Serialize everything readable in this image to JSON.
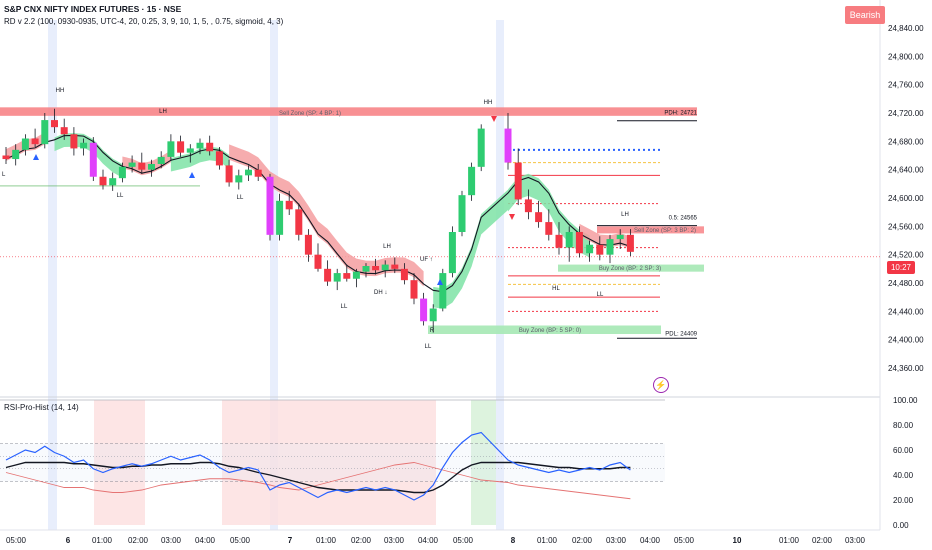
{
  "header": {
    "title": "S&P CNX NIFTY INDEX FUTURES · 15 · NSE",
    "subtitle": "RD v 2.2 (100, 0930-0935, UTC-4, 20, 0.25, 3, 9, 10, 1, 5, , 0.75, sigmoid, 4, 3)"
  },
  "badge": {
    "label": "Bearish",
    "color": "#f77c80"
  },
  "current_price_tag": {
    "label": "10:27",
    "color": "#f23645"
  },
  "price_axis": {
    "labels": [
      "24,840.00",
      "24,800.00",
      "24,760.00",
      "24,720.00",
      "24,680.00",
      "24,640.00",
      "24,600.00",
      "24,560.00",
      "24,520.00",
      "24,480.00",
      "24,440.00",
      "24,400.00",
      "24,360.00"
    ],
    "values": [
      24840,
      24800,
      24760,
      24720,
      24680,
      24640,
      24600,
      24560,
      24520,
      24480,
      24440,
      24400,
      24360
    ]
  },
  "rsi_axis": {
    "labels": [
      "100.00",
      "80.00",
      "60.00",
      "40.00",
      "20.00",
      "0.00"
    ],
    "values": [
      100,
      80,
      60,
      40,
      20,
      0
    ]
  },
  "time_axis": {
    "labels": [
      "05:00",
      "6",
      "01:00",
      "02:00",
      "03:00",
      "04:00",
      "05:00",
      "7",
      "01:00",
      "02:00",
      "03:00",
      "04:00",
      "05:00",
      "8",
      "01:00",
      "02:00",
      "03:00",
      "04:00",
      "05:00",
      "10",
      "01:00",
      "02:00",
      "03:00"
    ]
  },
  "indicator": {
    "title": "RSI-Pro-Hist (14, 14)"
  },
  "zones": {
    "sell_zone_1": "Sell Zone (SP: 4  BP: 1)",
    "sell_zone_2": "Sell Zone (SP: 3  BP: 2)",
    "buy_zone_1": "Buy Zone (BP: 2  SP: 3)",
    "buy_zone_2": "Buy Zone (BP: 5  SP: 0)"
  },
  "levels": {
    "pdh": "PDH: 24721",
    "pdl": "PDL: 24409",
    "fib": "0.5: 24565"
  },
  "annotations": {
    "hh": "HH",
    "lh": "LH",
    "ll": "LL",
    "l": "L",
    "hl": "HL",
    "uf": "UF ↑",
    "dh": "DH ↓",
    "r": "R"
  },
  "colors": {
    "up": "#2ecc71",
    "down": "#f23645",
    "magenta": "#e040fb",
    "sell_zone": "#f77c80",
    "buy_zone": "#a5e8b4",
    "band_bear": "#f49ea0",
    "band_bull": "#7ee3a6",
    "session": "#e8eefc",
    "rsi_line": "#2962ff",
    "rsi_ma": "#131722",
    "rsi_signal": "#e57373",
    "bear_zone": "#fddede",
    "bull_zone": "#d4f0d6"
  },
  "chart_data": {
    "type": "candlestick",
    "title": "S&P CNX NIFTY INDEX FUTURES · 15 · NSE",
    "ylim": [
      24340,
      24860
    ],
    "ohlc": [
      [
        24660,
        24672,
        24648,
        24655
      ],
      [
        24655,
        24676,
        24646,
        24668
      ],
      [
        24668,
        24690,
        24660,
        24684
      ],
      [
        24684,
        24698,
        24672,
        24676
      ],
      [
        24676,
        24720,
        24670,
        24710
      ],
      [
        24710,
        24726,
        24692,
        24700
      ],
      [
        24700,
        24712,
        24682,
        24690
      ],
      [
        24690,
        24700,
        24660,
        24670
      ],
      [
        24670,
        24684,
        24660,
        24678
      ],
      [
        24678,
        24686,
        24624,
        24630
      ],
      [
        24630,
        24640,
        24612,
        24618
      ],
      [
        24618,
        24636,
        24610,
        24628
      ],
      [
        24628,
        24650,
        24622,
        24644
      ],
      [
        24644,
        24660,
        24636,
        24650
      ],
      [
        24650,
        24664,
        24634,
        24640
      ],
      [
        24640,
        24654,
        24630,
        24648
      ],
      [
        24648,
        24666,
        24642,
        24658
      ],
      [
        24658,
        24690,
        24652,
        24680
      ],
      [
        24680,
        24688,
        24658,
        24664
      ],
      [
        24664,
        24676,
        24650,
        24670
      ],
      [
        24670,
        24684,
        24662,
        24678
      ],
      [
        24678,
        24688,
        24660,
        24666
      ],
      [
        24666,
        24672,
        24640,
        24646
      ],
      [
        24646,
        24654,
        24616,
        24622
      ],
      [
        24622,
        24640,
        24612,
        24632
      ],
      [
        24632,
        24646,
        24624,
        24640
      ],
      [
        24640,
        24648,
        24624,
        24630
      ],
      [
        24630,
        24634,
        24540,
        24548
      ],
      [
        24548,
        24606,
        24540,
        24596
      ],
      [
        24596,
        24610,
        24576,
        24584
      ],
      [
        24584,
        24592,
        24540,
        24548
      ],
      [
        24548,
        24556,
        24510,
        24520
      ],
      [
        24520,
        24536,
        24496,
        24500
      ],
      [
        24500,
        24512,
        24476,
        24482
      ],
      [
        24482,
        24500,
        24470,
        24494
      ],
      [
        24494,
        24506,
        24482,
        24486
      ],
      [
        24486,
        24500,
        24474,
        24496
      ],
      [
        24496,
        24508,
        24488,
        24504
      ],
      [
        24504,
        24514,
        24492,
        24498
      ],
      [
        24498,
        24512,
        24488,
        24506
      ],
      [
        24506,
        24516,
        24494,
        24500
      ],
      [
        24500,
        24508,
        24478,
        24484
      ],
      [
        24484,
        24494,
        24450,
        24458
      ],
      [
        24458,
        24466,
        24420,
        24426
      ],
      [
        24426,
        24450,
        24410,
        24444
      ],
      [
        24444,
        24500,
        24440,
        24494
      ],
      [
        24494,
        24560,
        24488,
        24552
      ],
      [
        24552,
        24610,
        24546,
        24604
      ],
      [
        24604,
        24650,
        24596,
        24644
      ],
      [
        24644,
        24704,
        24638,
        24698
      ],
      [
        24698,
        24720,
        24640,
        24650
      ],
      [
        24650,
        24670,
        24590,
        24598
      ],
      [
        24598,
        24612,
        24570,
        24580
      ],
      [
        24580,
        24596,
        24558,
        24566
      ],
      [
        24566,
        24584,
        24540,
        24548
      ],
      [
        24548,
        24566,
        24520,
        24530
      ],
      [
        24530,
        24560,
        24510,
        24552
      ],
      [
        24552,
        24560,
        24516,
        24522
      ],
      [
        24522,
        24540,
        24510,
        24534
      ],
      [
        24534,
        24546,
        24512,
        24520
      ],
      [
        24520,
        24548,
        24508,
        24542
      ],
      [
        24542,
        24556,
        24528,
        24548
      ],
      [
        24548,
        24556,
        24518,
        24524
      ]
    ],
    "rsi": {
      "ylim": [
        0,
        100
      ],
      "rsi_line": [
        52,
        56,
        60,
        58,
        63,
        58,
        55,
        50,
        52,
        45,
        42,
        45,
        47,
        49,
        47,
        49,
        52,
        55,
        52,
        54,
        56,
        52,
        46,
        42,
        44,
        46,
        44,
        28,
        32,
        34,
        30,
        26,
        22,
        26,
        28,
        26,
        28,
        30,
        28,
        30,
        28,
        24,
        20,
        24,
        32,
        46,
        58,
        66,
        72,
        74,
        52,
        48,
        46,
        44,
        42,
        44,
        42,
        44,
        46,
        44,
        48,
        50,
        44
      ],
      "rsi_ma": [
        46,
        48,
        50,
        50,
        50,
        50,
        50,
        49,
        49,
        48,
        47,
        46,
        46,
        47,
        47,
        48,
        48,
        49,
        49,
        49,
        50,
        50,
        49,
        47,
        46,
        44,
        42,
        40,
        38,
        36,
        34,
        32,
        30,
        29,
        28,
        28,
        28,
        28,
        28,
        28,
        28,
        27,
        26,
        26,
        28,
        32,
        38,
        44,
        48,
        50,
        50,
        50,
        49,
        48,
        47,
        46,
        46,
        45,
        45,
        45,
        45,
        46,
        46
      ],
      "signal": [
        42,
        40,
        38,
        36,
        34,
        32,
        30,
        30,
        30,
        28,
        27,
        26,
        26,
        27,
        28,
        30,
        32,
        33,
        34,
        35,
        36,
        37,
        37,
        37,
        36,
        35,
        34,
        32,
        30,
        29,
        28,
        30,
        32,
        34,
        36,
        38,
        40,
        42,
        44,
        46,
        48,
        49,
        50,
        48,
        46,
        44,
        42,
        40,
        38,
        36,
        34,
        32,
        31,
        30,
        29,
        28,
        27,
        26,
        25,
        24,
        23,
        22,
        21
      ]
    },
    "hlines": [
      {
        "value": 24721,
        "label": "PDH: 24721"
      },
      {
        "value": 24409,
        "label": "PDL: 24409"
      },
      {
        "value": 24565,
        "label": "0.5: 24565"
      }
    ]
  }
}
